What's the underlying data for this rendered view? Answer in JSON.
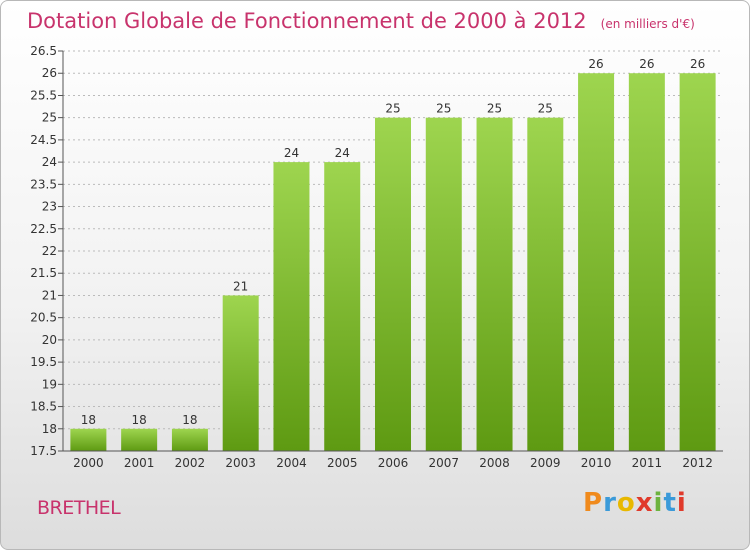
{
  "header": {
    "title": "Dotation Globale de Fonctionnement de 2000 à 2012",
    "subtitle": "(en milliers d'€)"
  },
  "footer": {
    "place": "BRETHEL",
    "logo": "Proxiti",
    "logo_colors": [
      "#f08a1c",
      "#3a9ad9",
      "#e8b800",
      "#e03a2b",
      "#6db33f",
      "#3a9ad9",
      "#e03a2b"
    ]
  },
  "colors": {
    "bar_top": "#9ed54f",
    "bar_bottom": "#5e9a12",
    "grid": "#bbbbbb",
    "axis": "#555555",
    "accent": "#c8336c"
  },
  "chart_data": {
    "type": "bar",
    "title": "Dotation Globale de Fonctionnement de 2000 à 2012",
    "subtitle": "(en milliers d'€)",
    "categories": [
      "2000",
      "2001",
      "2002",
      "2003",
      "2004",
      "2005",
      "2006",
      "2007",
      "2008",
      "2009",
      "2010",
      "2011",
      "2012"
    ],
    "values": [
      18,
      18,
      18,
      21,
      24,
      24,
      25,
      25,
      25,
      25,
      26,
      26,
      26
    ],
    "data_labels": [
      "18",
      "18",
      "18",
      "21",
      "24",
      "24",
      "25",
      "25",
      "25",
      "25",
      "26",
      "26",
      "26"
    ],
    "ylim": [
      17.5,
      26.5
    ],
    "yticks": [
      17.5,
      18,
      18.5,
      19,
      19.5,
      20,
      20.5,
      21,
      21.5,
      22,
      22.5,
      23,
      23.5,
      24,
      24.5,
      25,
      25.5,
      26,
      26.5
    ],
    "ytick_labels": [
      "17.5",
      "18",
      "18.5",
      "19",
      "19.5",
      "20",
      "20.5",
      "21",
      "21.5",
      "22",
      "22.5",
      "23",
      "23.5",
      "24",
      "24.5",
      "25",
      "25.5",
      "26",
      "26.5"
    ],
    "grid": true,
    "xlabel": "",
    "ylabel": ""
  }
}
